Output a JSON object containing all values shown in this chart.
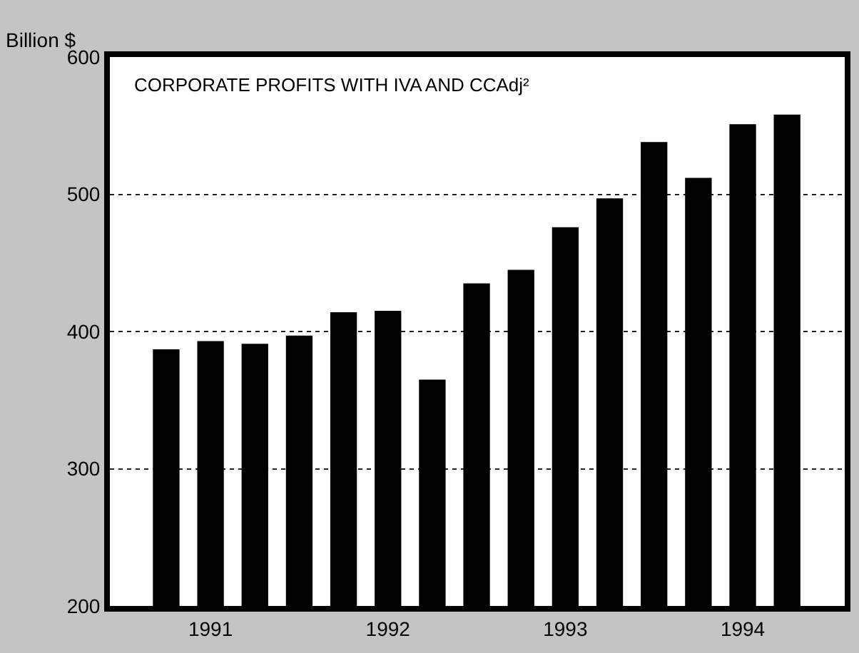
{
  "chart_data": {
    "type": "bar",
    "title": "CORPORATE PROFITS WITH IVA AND CCAdj²",
    "ylabel": "Billion $",
    "categories": [
      null,
      "1991",
      null,
      null,
      null,
      "1992",
      null,
      null,
      null,
      "1993",
      null,
      null,
      null,
      "1994",
      null
    ],
    "values": [
      387,
      393,
      391,
      397,
      414,
      415,
      365,
      435,
      445,
      476,
      497,
      538,
      512,
      551,
      558
    ],
    "color": "#000000",
    "ylim": [
      200,
      600
    ],
    "yticks": [
      200,
      300,
      400,
      500,
      600
    ],
    "grid": "y"
  }
}
